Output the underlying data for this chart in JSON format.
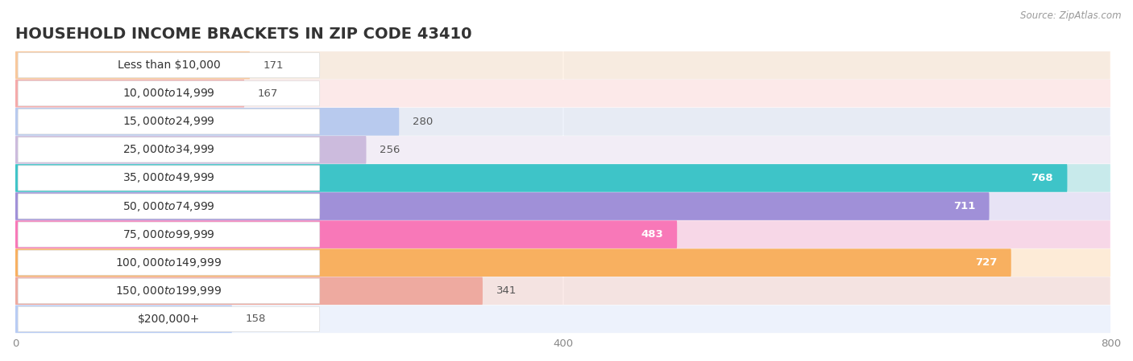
{
  "title": "HOUSEHOLD INCOME BRACKETS IN ZIP CODE 43410",
  "source": "Source: ZipAtlas.com",
  "categories": [
    "Less than $10,000",
    "$10,000 to $14,999",
    "$15,000 to $24,999",
    "$25,000 to $34,999",
    "$35,000 to $49,999",
    "$50,000 to $74,999",
    "$75,000 to $99,999",
    "$100,000 to $149,999",
    "$150,000 to $199,999",
    "$200,000+"
  ],
  "values": [
    171,
    167,
    280,
    256,
    768,
    711,
    483,
    727,
    341,
    158
  ],
  "bar_colors": [
    "#f8c89c",
    "#f5aaaa",
    "#b8caee",
    "#ccbbdd",
    "#3ec4c8",
    "#a090d8",
    "#f878b8",
    "#f8b060",
    "#eeaaa0",
    "#b8ccf4"
  ],
  "xlim": [
    0,
    800
  ],
  "xticks": [
    0,
    400,
    800
  ],
  "title_fontsize": 14,
  "label_fontsize": 10,
  "value_fontsize": 9.5,
  "bar_height": 0.58,
  "background_color": "#ffffff",
  "row_bg_color": "#f0f0f0",
  "value_label_inside_threshold": 350
}
